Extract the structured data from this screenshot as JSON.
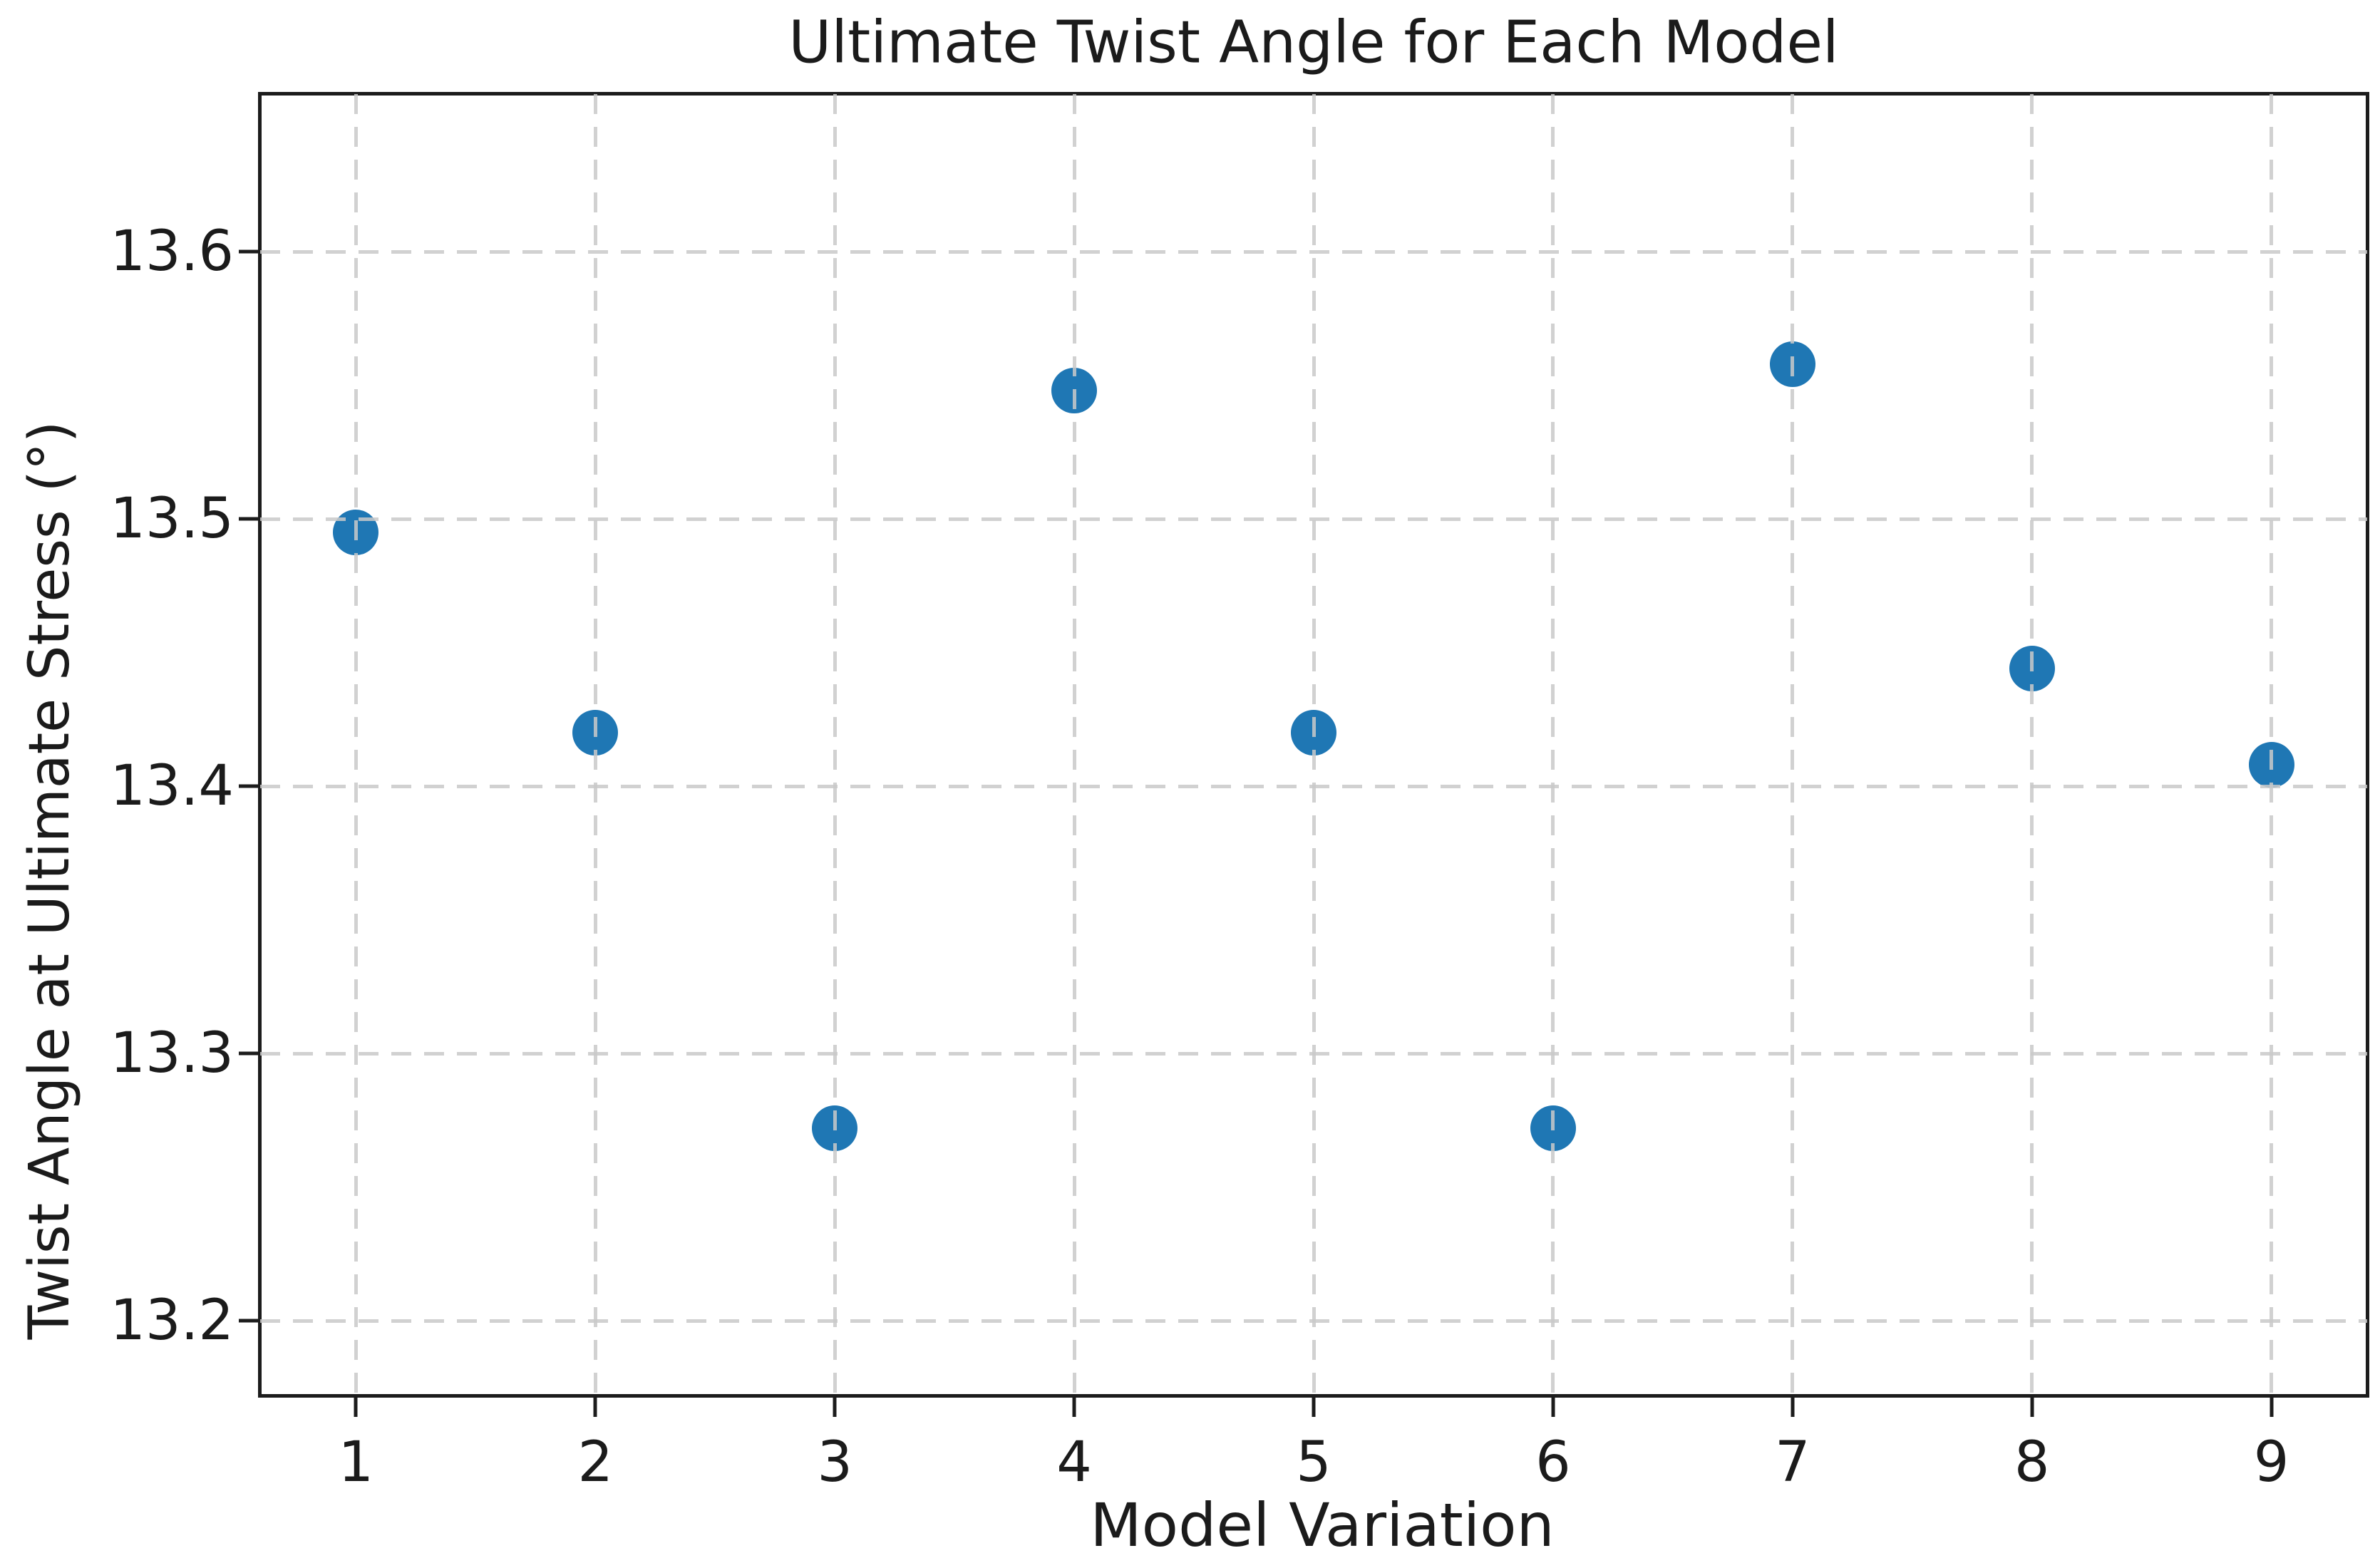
{
  "chart_data": {
    "type": "scatter",
    "title": "Ultimate Twist Angle for Each Model",
    "xlabel": "Model Variation",
    "ylabel": "Twist Angle at Ultimate Stress (°)",
    "x": [
      1,
      2,
      3,
      4,
      5,
      6,
      7,
      8,
      9
    ],
    "y": [
      13.495,
      13.42,
      13.272,
      13.548,
      13.42,
      13.272,
      13.558,
      13.444,
      13.408
    ],
    "xticks": [
      1,
      2,
      3,
      4,
      5,
      6,
      7,
      8,
      9
    ],
    "ytick_labels": [
      "13.2",
      "13.3",
      "13.4",
      "13.5",
      "13.6"
    ],
    "yticks": [
      13.2,
      13.3,
      13.4,
      13.5,
      13.6
    ],
    "xlim": [
      0.6,
      9.4
    ],
    "ylim": [
      13.172,
      13.659
    ],
    "grid": true,
    "grid_style": "dashed",
    "legend_position": "none",
    "marker_color": "#1f77b4",
    "grid_color": "#d3d3d3",
    "axis_color": "#1c1c1c"
  }
}
